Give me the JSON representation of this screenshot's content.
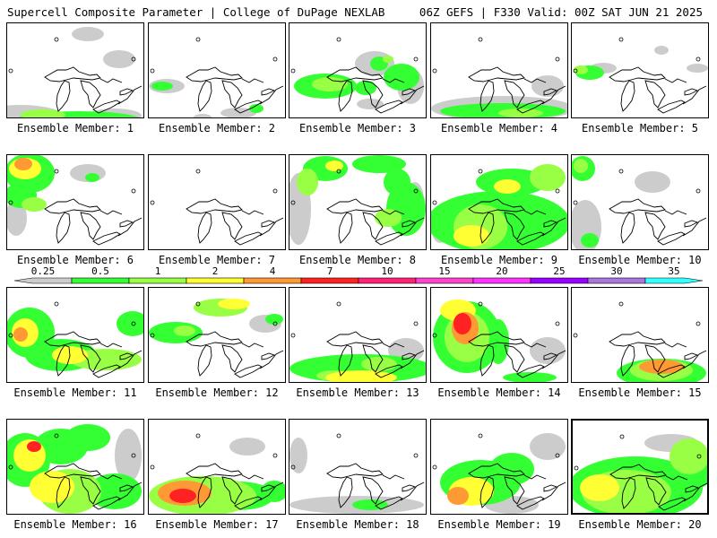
{
  "header": {
    "left": "Supercell Composite Parameter | College of DuPage NEXLAB",
    "right": "06Z GEFS | F330 Valid: 00Z SAT JUN 21 2025"
  },
  "colorbar": {
    "labels": [
      "0.25",
      "0.5",
      "1",
      "2",
      "4",
      "7",
      "10",
      "15",
      "20",
      "25",
      "30",
      "35"
    ],
    "colors": [
      "#cccccc",
      "#33ff33",
      "#99ff44",
      "#ffff33",
      "#ff9933",
      "#ff2222",
      "#ff2277",
      "#ff44cc",
      "#ff33ff",
      "#9900ff",
      "#aa77dd",
      "#33ffff"
    ]
  },
  "panels": [
    {
      "label": "Ensemble Member: 1"
    },
    {
      "label": "Ensemble Member: 2"
    },
    {
      "label": "Ensemble Member: 3"
    },
    {
      "label": "Ensemble Member: 4"
    },
    {
      "label": "Ensemble Member: 5"
    },
    {
      "label": "Ensemble Member: 6"
    },
    {
      "label": "Ensemble Member: 7"
    },
    {
      "label": "Ensemble Member: 8"
    },
    {
      "label": "Ensemble Member: 9"
    },
    {
      "label": "Ensemble Member: 10"
    },
    {
      "label": "Ensemble Member: 11"
    },
    {
      "label": "Ensemble Member: 12"
    },
    {
      "label": "Ensemble Member: 13"
    },
    {
      "label": "Ensemble Member: 14"
    },
    {
      "label": "Ensemble Member: 15"
    },
    {
      "label": "Ensemble Member: 16"
    },
    {
      "label": "Ensemble Member: 17"
    },
    {
      "label": "Ensemble Member: 18"
    },
    {
      "label": "Ensemble Member: 19"
    },
    {
      "label": "Ensemble Member: 20"
    }
  ]
}
